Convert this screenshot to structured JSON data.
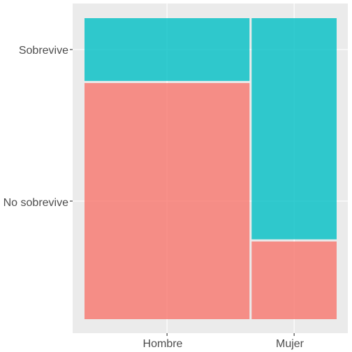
{
  "chart_data": {
    "type": "mosaic",
    "x_categories": [
      "Hombre",
      "Mujer"
    ],
    "y_categories": [
      "No sobrevive",
      "Sobrevive"
    ],
    "x_proportions": [
      0.66,
      0.34
    ],
    "proportions": {
      "Hombre": {
        "No sobrevive": 0.79,
        "Sobrevive": 0.21
      },
      "Mujer": {
        "No sobrevive": 0.26,
        "Sobrevive": 0.74
      }
    },
    "colors": {
      "No sobrevive": "#F8766D",
      "Sobrevive": "#00BFC4"
    },
    "grid": true,
    "legend": "none",
    "title": "",
    "xlabel": "",
    "ylabel": ""
  },
  "axis_labels": {
    "x": [
      "Hombre",
      "Mujer"
    ],
    "y": [
      "Sobrevive",
      "No sobrevive"
    ]
  }
}
